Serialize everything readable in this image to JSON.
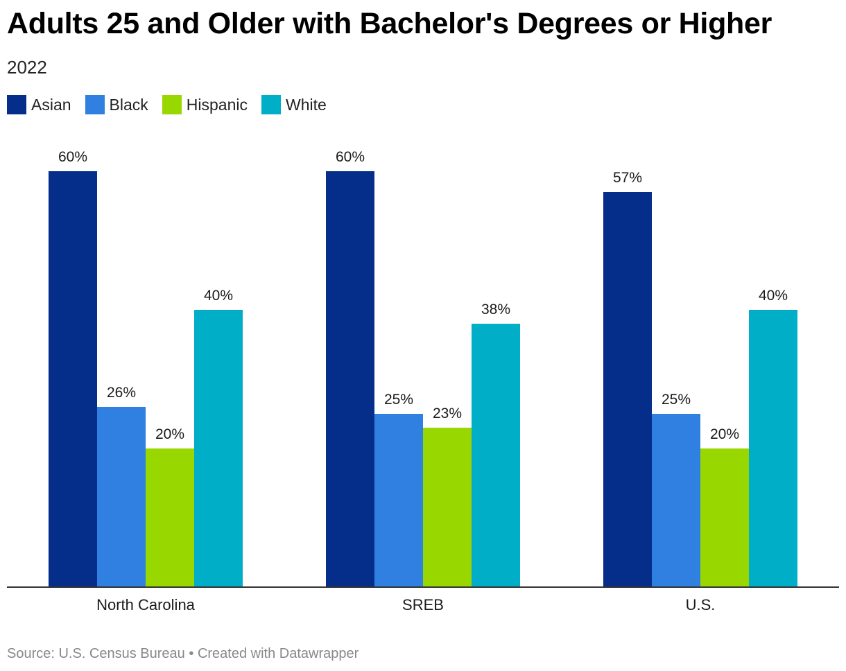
{
  "title": "Adults 25 and Older with Bachelor's Degrees or Higher",
  "subtitle": "2022",
  "legend": [
    {
      "label": "Asian",
      "color": "#042e89"
    },
    {
      "label": "Black",
      "color": "#2f80e0"
    },
    {
      "label": "Hispanic",
      "color": "#99d700"
    },
    {
      "label": "White",
      "color": "#00aec7"
    }
  ],
  "source": {
    "prefix": "Source: U.S. Census Bureau",
    "separator": "•",
    "credit": "Created with Datawrapper"
  },
  "chart_data": {
    "type": "bar",
    "title": "Adults 25 and Older with Bachelor's Degrees or Higher",
    "subtitle": "2022",
    "categories": [
      "North Carolina",
      "SREB",
      "U.S."
    ],
    "series": [
      {
        "name": "Asian",
        "values": [
          60,
          60,
          57
        ],
        "labels": [
          "60%",
          "60%",
          "57%"
        ]
      },
      {
        "name": "Black",
        "values": [
          26,
          25,
          25
        ],
        "labels": [
          "26%",
          "25%",
          "25%"
        ]
      },
      {
        "name": "Hispanic",
        "values": [
          20,
          23,
          20
        ],
        "labels": [
          "20%",
          "23%",
          "20%"
        ]
      },
      {
        "name": "White",
        "values": [
          40,
          38,
          40
        ],
        "labels": [
          "40%",
          "38%",
          "40%"
        ]
      }
    ],
    "xlabel": "",
    "ylabel": "",
    "ylim": [
      0,
      60
    ],
    "grid": false,
    "legend_position": "top-left"
  }
}
